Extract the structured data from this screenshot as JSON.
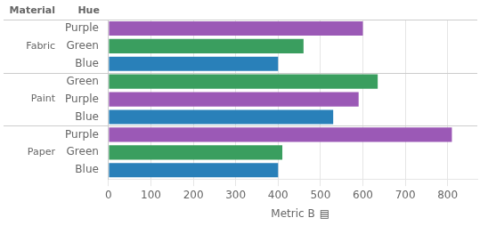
{
  "chart_data": {
    "type": "bar",
    "orientation": "horizontal",
    "xlabel": "Metric B",
    "column_headers": [
      "Material",
      "Hue"
    ],
    "annotations": [
      "▤"
    ],
    "groups": [
      {
        "name": "Fabric",
        "categories": [
          "Purple",
          "Green",
          "Blue"
        ],
        "values": [
          600,
          460,
          400
        ],
        "colors": [
          "#9b59b6",
          "#3a9e5f",
          "#2980b9"
        ]
      },
      {
        "name": "Paint",
        "categories": [
          "Green",
          "Purple",
          "Blue"
        ],
        "values": [
          635,
          590,
          530
        ],
        "colors": [
          "#3a9e5f",
          "#9b59b6",
          "#2980b9"
        ]
      },
      {
        "name": "Paper",
        "categories": [
          "Purple",
          "Green",
          "Blue"
        ],
        "values": [
          810,
          410,
          400
        ],
        "colors": [
          "#9b59b6",
          "#3a9e5f",
          "#2980b9"
        ]
      }
    ],
    "xlim": [
      0,
      870
    ],
    "xticks": [
      0,
      100,
      200,
      300,
      400,
      500,
      600,
      700,
      800
    ],
    "grid": true
  }
}
